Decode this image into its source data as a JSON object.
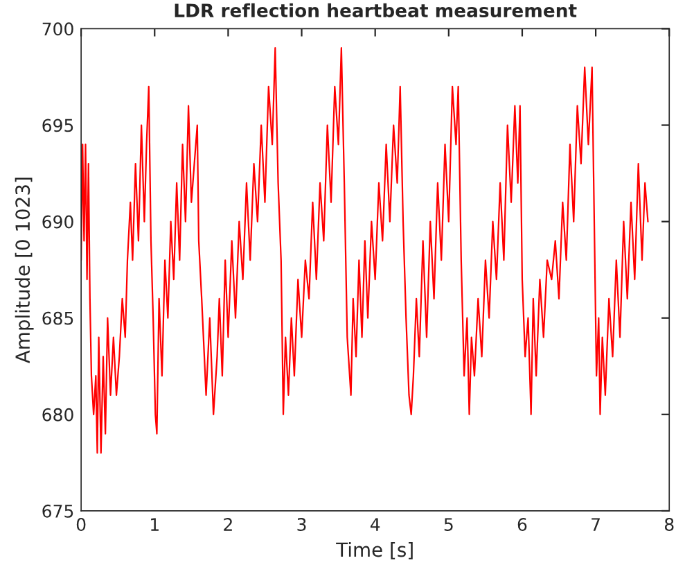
{
  "chart_data": {
    "type": "line",
    "title": "LDR reflection heartbeat measurement",
    "xlabel": "Time [s]",
    "ylabel": "Amplitude [0 1023]",
    "xlim": [
      0,
      8
    ],
    "xticks": [
      0,
      1,
      2,
      3,
      4,
      5,
      6,
      7,
      8
    ],
    "ylim": [
      675,
      700
    ],
    "yticks": [
      675,
      680,
      685,
      690,
      695,
      700
    ],
    "grid": false,
    "legend": false,
    "marker": "none",
    "line_style": "solid",
    "series": [
      {
        "color": "#ff0000",
        "x": [
          0,
          0.02,
          0.04,
          0.06,
          0.08,
          0.1,
          0.12,
          0.14,
          0.17,
          0.2,
          0.22,
          0.24,
          0.27,
          0.3,
          0.33,
          0.36,
          0.4,
          0.44,
          0.48,
          0.52,
          0.56,
          0.6,
          0.63,
          0.67,
          0.7,
          0.74,
          0.78,
          0.82,
          0.86,
          0.89,
          0.92,
          0.95,
          0.98,
          1.01,
          1.03,
          1.06,
          1.1,
          1.14,
          1.18,
          1.22,
          1.26,
          1.3,
          1.34,
          1.38,
          1.42,
          1.46,
          1.5,
          1.54,
          1.58,
          1.6,
          1.64,
          1.7,
          1.75,
          1.8,
          1.85,
          1.88,
          1.92,
          1.96,
          2.0,
          2.05,
          2.1,
          2.15,
          2.2,
          2.25,
          2.3,
          2.35,
          2.4,
          2.45,
          2.5,
          2.55,
          2.6,
          2.64,
          2.68,
          2.72,
          2.75,
          2.78,
          2.82,
          2.86,
          2.9,
          2.95,
          3.0,
          3.05,
          3.1,
          3.15,
          3.2,
          3.25,
          3.3,
          3.35,
          3.4,
          3.45,
          3.5,
          3.54,
          3.58,
          3.62,
          3.67,
          3.7,
          3.74,
          3.78,
          3.82,
          3.86,
          3.9,
          3.95,
          4.0,
          4.05,
          4.1,
          4.15,
          4.2,
          4.25,
          4.3,
          4.34,
          4.38,
          4.42,
          4.46,
          4.49,
          4.52,
          4.56,
          4.6,
          4.65,
          4.7,
          4.75,
          4.8,
          4.85,
          4.9,
          4.95,
          5.0,
          5.05,
          5.1,
          5.13,
          5.17,
          5.21,
          5.25,
          5.28,
          5.31,
          5.35,
          5.4,
          5.45,
          5.5,
          5.55,
          5.6,
          5.65,
          5.7,
          5.75,
          5.8,
          5.85,
          5.9,
          5.94,
          5.97,
          6.0,
          6.04,
          6.08,
          6.12,
          6.15,
          6.19,
          6.24,
          6.29,
          6.34,
          6.4,
          6.45,
          6.5,
          6.55,
          6.6,
          6.65,
          6.7,
          6.75,
          6.8,
          6.85,
          6.9,
          6.95,
          6.98,
          7.01,
          7.04,
          7.06,
          7.09,
          7.13,
          7.18,
          7.23,
          7.28,
          7.33,
          7.38,
          7.43,
          7.48,
          7.53,
          7.58,
          7.63,
          7.67,
          7.71
        ],
        "values": [
          688,
          694,
          689,
          694,
          687,
          693,
          686,
          682,
          680,
          682,
          678,
          684,
          678,
          683,
          679,
          685,
          681,
          684,
          681,
          683,
          686,
          684,
          688,
          691,
          688,
          693,
          689,
          695,
          690,
          694,
          697,
          689,
          685,
          680,
          679,
          686,
          682,
          688,
          685,
          690,
          687,
          692,
          688,
          694,
          690,
          696,
          691,
          693,
          695,
          689,
          686,
          681,
          685,
          680,
          683,
          686,
          682,
          688,
          684,
          689,
          685,
          690,
          687,
          692,
          688,
          693,
          690,
          695,
          691,
          697,
          694,
          699,
          692,
          688,
          680,
          684,
          681,
          685,
          682,
          687,
          684,
          688,
          686,
          691,
          687,
          692,
          689,
          695,
          691,
          697,
          694,
          699,
          692,
          684,
          681,
          686,
          683,
          688,
          684,
          689,
          685,
          690,
          687,
          692,
          689,
          694,
          690,
          695,
          692,
          697,
          690,
          685,
          681,
          680,
          682,
          686,
          683,
          689,
          684,
          690,
          686,
          692,
          688,
          694,
          690,
          697,
          694,
          697,
          688,
          682,
          685,
          680,
          684,
          682,
          686,
          683,
          688,
          685,
          690,
          687,
          692,
          688,
          695,
          691,
          696,
          692,
          696,
          687,
          683,
          685,
          680,
          686,
          682,
          687,
          684,
          688,
          687,
          689,
          686,
          691,
          688,
          694,
          690,
          696,
          693,
          698,
          694,
          698,
          690,
          682,
          685,
          680,
          684,
          681,
          686,
          683,
          688,
          684,
          690,
          686,
          691,
          687,
          693,
          688,
          692,
          690
        ]
      }
    ]
  }
}
